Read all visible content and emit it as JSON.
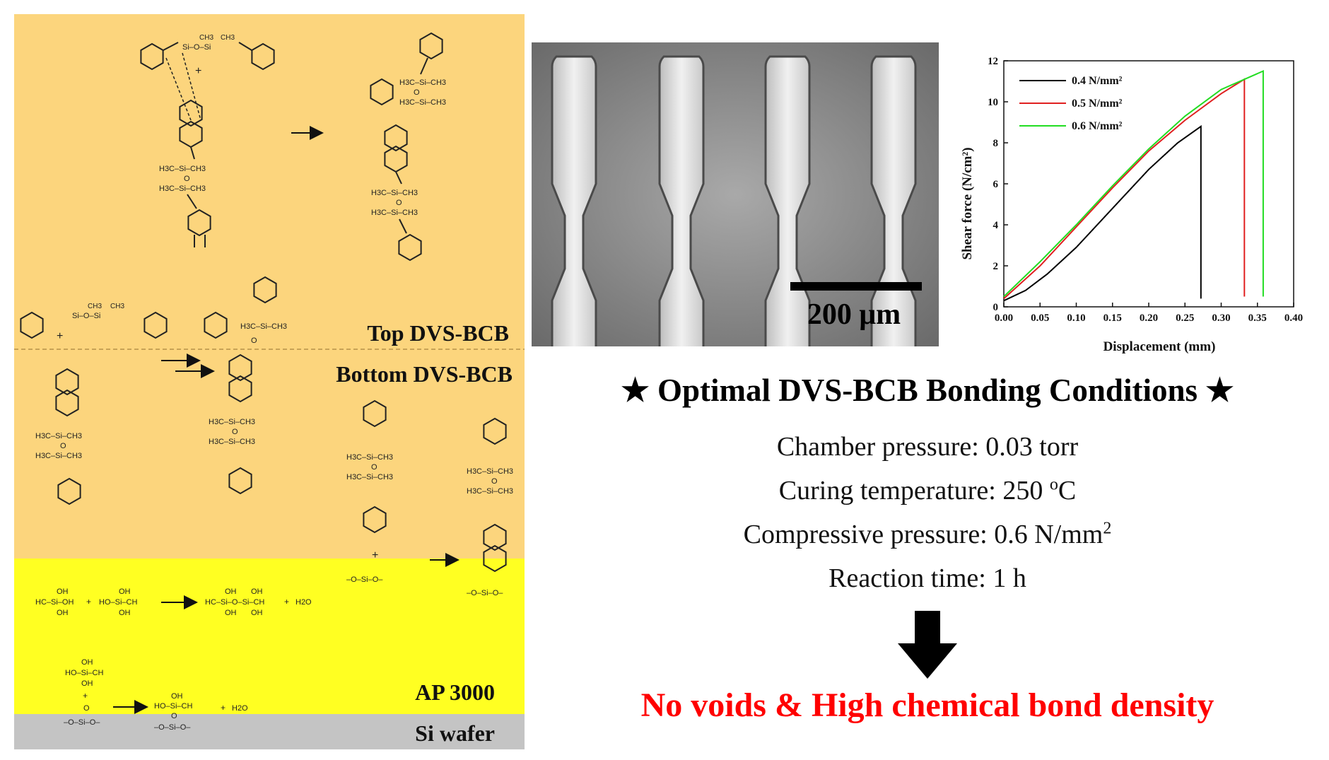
{
  "layers": {
    "top_label": "Top DVS-BCB",
    "bottom_label": "Bottom DVS-BCB",
    "ap_label": "AP 3000",
    "si_label": "Si wafer"
  },
  "colors": {
    "dvs_bcb_layer": "#fcd57d",
    "ap3000_layer": "#ffff22",
    "si_wafer": "#c4c4c4",
    "result_text": "#ff0000"
  },
  "chem": {
    "ch3": "CH3",
    "h3c_si_ch3": "H3C–Si–CH3",
    "o": "O",
    "si_o_si": "Si–O–Si",
    "plus": "+",
    "h2o": "H2O",
    "oh": "OH",
    "ap_reactant_1": "HC–Si–OH",
    "ap_reactant_2": "HO–Si–CH",
    "ap_product": "HC–Si–O–Si–CH",
    "silanol": "HO–Si–CH",
    "surface": "–O–Si–O–"
  },
  "micrograph": {
    "scale_label": "200 μm"
  },
  "chart_data": {
    "type": "line",
    "xlabel": "Displacement (mm)",
    "ylabel": "Shear force (N/cm²)",
    "xlim": [
      0,
      0.4
    ],
    "ylim": [
      0,
      12
    ],
    "xticks": [
      "0.00",
      "0.05",
      "0.10",
      "0.15",
      "0.20",
      "0.25",
      "0.30",
      "0.35",
      "0.40"
    ],
    "yticks": [
      "0",
      "2",
      "4",
      "6",
      "8",
      "10",
      "12"
    ],
    "legend_position": "top-left",
    "series": [
      {
        "name": "0.4 N/mm²",
        "color": "#000000",
        "x": [
          0.0,
          0.03,
          0.06,
          0.1,
          0.15,
          0.2,
          0.24,
          0.272,
          0.272
        ],
        "y": [
          0.3,
          0.8,
          1.6,
          2.9,
          4.8,
          6.7,
          8.0,
          8.8,
          0.4
        ]
      },
      {
        "name": "0.5 N/mm²",
        "color": "#e02020",
        "x": [
          0.0,
          0.05,
          0.1,
          0.15,
          0.2,
          0.25,
          0.3,
          0.332,
          0.332
        ],
        "y": [
          0.4,
          2.0,
          3.9,
          5.8,
          7.6,
          9.1,
          10.4,
          11.1,
          0.5
        ]
      },
      {
        "name": "0.6 N/mm²",
        "color": "#22dd22",
        "x": [
          0.0,
          0.05,
          0.1,
          0.15,
          0.2,
          0.25,
          0.3,
          0.358,
          0.358
        ],
        "y": [
          0.5,
          2.2,
          4.0,
          5.9,
          7.7,
          9.3,
          10.6,
          11.5,
          0.5
        ]
      }
    ]
  },
  "conditions": {
    "title": "★ Optimal DVS-BCB Bonding Conditions ★",
    "chamber": "Chamber pressure: 0.03 torr",
    "curing_prefix": "Curing temperature: 250 ",
    "curing_sup": "o",
    "curing_suffix": "C",
    "compressive_prefix": "Compressive pressure: 0.6 N/mm",
    "compressive_sup": "2",
    "reaction": "Reaction time: 1 h"
  },
  "result": "No voids & High chemical bond density"
}
